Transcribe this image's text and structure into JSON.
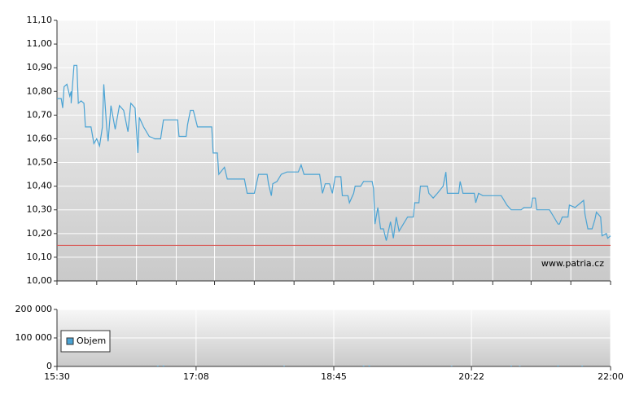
{
  "chart_data": [
    {
      "type": "line",
      "color": "#4aa3d4",
      "watermark": "www.patria.cz",
      "hline": {
        "value": 10.15,
        "color": "#d9534f"
      },
      "xlim": [
        930,
        1320
      ],
      "xgrid": [
        930,
        958,
        986,
        1014,
        1041,
        1069,
        1097,
        1125,
        1153,
        1181,
        1209,
        1237,
        1264,
        1292,
        1320
      ],
      "ylim": [
        10.0,
        11.1
      ],
      "yticks": [
        {
          "value": 10.0,
          "label": "10,00"
        },
        {
          "value": 10.1,
          "label": "10,10"
        },
        {
          "value": 10.2,
          "label": "10,20"
        },
        {
          "value": 10.3,
          "label": "10,30"
        },
        {
          "value": 10.4,
          "label": "10,40"
        },
        {
          "value": 10.5,
          "label": "10,50"
        },
        {
          "value": 10.6,
          "label": "10,60"
        },
        {
          "value": 10.7,
          "label": "10,70"
        },
        {
          "value": 10.8,
          "label": "10,80"
        },
        {
          "value": 10.9,
          "label": "10,90"
        },
        {
          "value": 11.0,
          "label": "11,00"
        },
        {
          "value": 11.1,
          "label": "11,10"
        }
      ],
      "grid": true,
      "x": [
        930,
        933,
        934,
        935,
        937,
        939,
        940,
        940,
        942,
        944,
        945,
        947,
        949,
        950,
        954,
        956,
        958,
        960,
        962,
        963,
        965,
        966,
        968,
        971,
        974,
        977,
        980,
        982,
        985,
        987,
        988,
        991,
        995,
        999,
        1003,
        1005,
        1015,
        1016,
        1021,
        1022,
        1024,
        1026,
        1029,
        1039,
        1040,
        1043,
        1044,
        1048,
        1050,
        1062,
        1064,
        1069,
        1072,
        1078,
        1079,
        1081,
        1082,
        1085,
        1088,
        1092,
        1100,
        1102,
        1104,
        1115,
        1117,
        1119,
        1122,
        1124,
        1126,
        1130,
        1131,
        1135,
        1136,
        1139,
        1140,
        1144,
        1146,
        1152,
        1153,
        1154,
        1156,
        1158,
        1160,
        1162,
        1165,
        1167,
        1169,
        1171,
        1174,
        1177,
        1181,
        1182,
        1185,
        1186,
        1191,
        1192,
        1195,
        1198,
        1202,
        1204,
        1205,
        1213,
        1214,
        1216,
        1224,
        1225,
        1227,
        1230,
        1243,
        1247,
        1250,
        1257,
        1259,
        1264,
        1265,
        1267,
        1268,
        1277,
        1280,
        1283,
        1284,
        1286,
        1290,
        1291,
        1295,
        1299,
        1301,
        1302,
        1304,
        1307,
        1309,
        1310,
        1313,
        1314,
        1317,
        1318,
        1320
      ],
      "values": [
        10.77,
        10.77,
        10.73,
        10.82,
        10.83,
        10.78,
        10.8,
        10.75,
        10.91,
        10.91,
        10.75,
        10.76,
        10.75,
        10.65,
        10.65,
        10.58,
        10.6,
        10.57,
        10.65,
        10.83,
        10.65,
        10.59,
        10.74,
        10.64,
        10.74,
        10.72,
        10.63,
        10.75,
        10.73,
        10.54,
        10.69,
        10.65,
        10.61,
        10.6,
        10.6,
        10.68,
        10.68,
        10.61,
        10.61,
        10.66,
        10.72,
        10.72,
        10.65,
        10.65,
        10.54,
        10.54,
        10.45,
        10.48,
        10.43,
        10.43,
        10.37,
        10.37,
        10.45,
        10.45,
        10.41,
        10.36,
        10.41,
        10.42,
        10.45,
        10.46,
        10.46,
        10.49,
        10.45,
        10.45,
        10.37,
        10.41,
        10.41,
        10.37,
        10.44,
        10.44,
        10.36,
        10.36,
        10.33,
        10.37,
        10.4,
        10.4,
        10.42,
        10.42,
        10.39,
        10.24,
        10.31,
        10.22,
        10.22,
        10.17,
        10.25,
        10.18,
        10.27,
        10.21,
        10.24,
        10.27,
        10.27,
        10.33,
        10.33,
        10.4,
        10.4,
        10.37,
        10.35,
        10.37,
        10.4,
        10.46,
        10.37,
        10.37,
        10.42,
        10.37,
        10.37,
        10.33,
        10.37,
        10.36,
        10.36,
        10.32,
        10.3,
        10.3,
        10.31,
        10.31,
        10.35,
        10.35,
        10.3,
        10.3,
        10.27,
        10.24,
        10.24,
        10.27,
        10.27,
        10.32,
        10.31,
        10.33,
        10.34,
        10.28,
        10.22,
        10.22,
        10.26,
        10.29,
        10.27,
        10.19,
        10.2,
        10.18,
        10.19
      ]
    },
    {
      "type": "bar",
      "xlim": [
        930,
        1320
      ],
      "xticks": [
        {
          "value": 930,
          "label": "15:30"
        },
        {
          "value": 1028,
          "label": "17:08"
        },
        {
          "value": 1125,
          "label": "18:45"
        },
        {
          "value": 1222,
          "label": "20:22"
        },
        {
          "value": 1320,
          "label": "22:00"
        }
      ],
      "ylim": [
        0,
        200000
      ],
      "yticks": [
        0,
        {
          "value": 100000,
          "label": "100 000"
        },
        {
          "value": 200000,
          "label": "200 000"
        }
      ],
      "grid": true,
      "x": [
        1001,
        1005,
        1090,
        1146,
        1150,
        1208,
        1250,
        1256,
        1283,
        1300
      ],
      "series": [
        {
          "name": "Objem",
          "color": "#4aa3d4",
          "values": [
            2500,
            3000,
            2000,
            2500,
            3000,
            2000,
            2500,
            2000,
            3000,
            2500
          ]
        }
      ]
    }
  ]
}
